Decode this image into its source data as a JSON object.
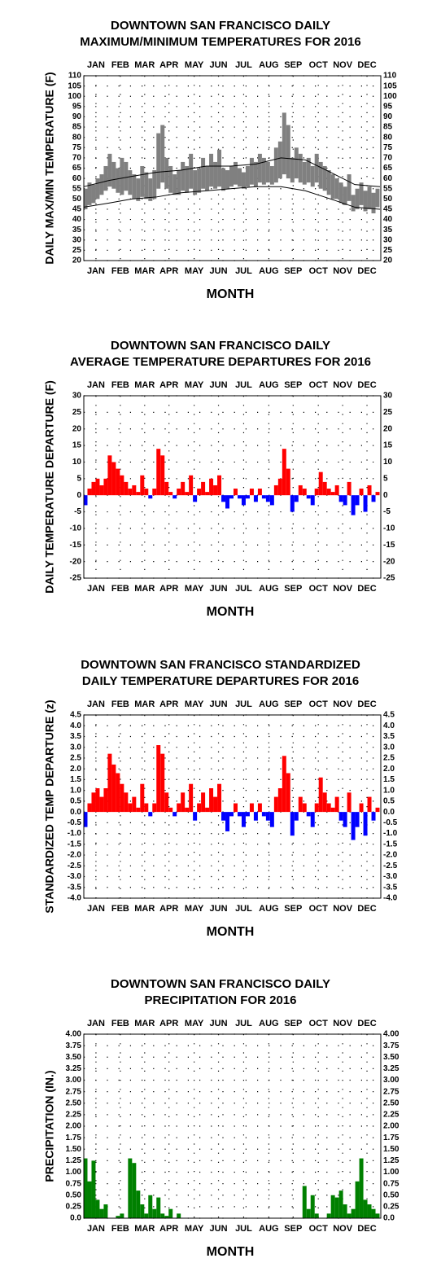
{
  "chart_data": [
    {
      "type": "range",
      "title": [
        "DOWNTOWN SAN FRANCISCO DAILY",
        "MAXIMUM/MINIMUM TEMPERATURES FOR 2016"
      ],
      "ylabel": "DAILY MAX/MIN TEMPERATURE (F)",
      "xlabel": "MONTH",
      "xlim": [
        1,
        367
      ],
      "xticks": [
        {
          "value": 16,
          "label": "JAN"
        },
        {
          "value": 46,
          "label": "FEB"
        },
        {
          "value": 76,
          "label": "MAR"
        },
        {
          "value": 106,
          "label": "APR"
        },
        {
          "value": 137,
          "label": "MAY"
        },
        {
          "value": 167,
          "label": "JUN"
        },
        {
          "value": 198,
          "label": "JUL"
        },
        {
          "value": 229,
          "label": "AUG"
        },
        {
          "value": 259,
          "label": "SEP"
        },
        {
          "value": 290,
          "label": "OCT"
        },
        {
          "value": 320,
          "label": "NOV"
        },
        {
          "value": 350,
          "label": "DEC"
        }
      ],
      "ylim": [
        20,
        110
      ],
      "yticks": [
        110,
        105,
        100,
        95,
        90,
        85,
        80,
        75,
        70,
        65,
        60,
        55,
        50,
        45,
        40,
        35,
        30,
        25,
        20
      ],
      "color": "#808080",
      "x": [
        3,
        8,
        13,
        18,
        23,
        28,
        33,
        38,
        43,
        48,
        53,
        58,
        63,
        68,
        73,
        78,
        83,
        88,
        93,
        98,
        103,
        108,
        113,
        118,
        123,
        128,
        133,
        138,
        143,
        148,
        153,
        158,
        163,
        168,
        173,
        178,
        183,
        188,
        193,
        198,
        203,
        208,
        213,
        218,
        223,
        228,
        233,
        238,
        243,
        248,
        253,
        258,
        263,
        268,
        273,
        278,
        283,
        288,
        293,
        298,
        303,
        308,
        313,
        318,
        323,
        328,
        333,
        338,
        343,
        348,
        353,
        358,
        363
      ],
      "high": [
        55,
        58,
        57,
        60,
        62,
        66,
        72,
        68,
        65,
        70,
        68,
        64,
        62,
        60,
        66,
        63,
        60,
        64,
        82,
        86,
        70,
        66,
        62,
        64,
        68,
        66,
        72,
        64,
        65,
        70,
        66,
        72,
        68,
        74,
        65,
        64,
        66,
        68,
        65,
        63,
        66,
        70,
        68,
        72,
        70,
        68,
        66,
        75,
        78,
        92,
        86,
        70,
        75,
        72,
        68,
        70,
        66,
        72,
        68,
        66,
        64,
        62,
        60,
        58,
        56,
        62,
        52,
        55,
        58,
        54,
        56,
        53,
        55
      ],
      "low": [
        45,
        47,
        48,
        50,
        52,
        54,
        56,
        55,
        53,
        52,
        54,
        52,
        50,
        49,
        51,
        50,
        49,
        50,
        55,
        58,
        55,
        53,
        52,
        52,
        54,
        53,
        55,
        52,
        53,
        55,
        54,
        56,
        55,
        56,
        54,
        55,
        56,
        57,
        56,
        55,
        56,
        57,
        56,
        58,
        57,
        58,
        57,
        58,
        60,
        62,
        60,
        58,
        60,
        58,
        57,
        58,
        56,
        58,
        55,
        54,
        52,
        50,
        50,
        48,
        47,
        49,
        44,
        45,
        47,
        44,
        45,
        43,
        46
      ],
      "series": [
        {
          "color": "#000000",
          "x": [
            1,
            32,
            60,
            91,
            121,
            152,
            182,
            213,
            244,
            274,
            305,
            335,
            366
          ],
          "values": [
            56,
            59,
            61,
            63,
            64,
            66,
            66,
            67,
            70,
            69,
            63,
            57,
            56
          ]
        },
        {
          "color": "#000000",
          "x": [
            1,
            32,
            60,
            91,
            121,
            152,
            182,
            213,
            244,
            274,
            305,
            335,
            366
          ],
          "values": [
            46,
            48,
            50,
            51,
            53,
            54,
            55,
            56,
            56,
            54,
            50,
            46,
            45
          ]
        }
      ]
    },
    {
      "type": "bar",
      "title": [
        "DOWNTOWN SAN FRANCISCO DAILY",
        "AVERAGE TEMPERATURE DEPARTURES FOR 2016"
      ],
      "ylabel": "DAILY TEMPERATURE DEPARTURE (F)",
      "xlabel": "MONTH",
      "xlim": [
        1,
        367
      ],
      "xticks": [
        {
          "value": 16,
          "label": "JAN"
        },
        {
          "value": 46,
          "label": "FEB"
        },
        {
          "value": 76,
          "label": "MAR"
        },
        {
          "value": 106,
          "label": "APR"
        },
        {
          "value": 137,
          "label": "MAY"
        },
        {
          "value": 167,
          "label": "JUN"
        },
        {
          "value": 198,
          "label": "JUL"
        },
        {
          "value": 229,
          "label": "AUG"
        },
        {
          "value": 259,
          "label": "SEP"
        },
        {
          "value": 290,
          "label": "OCT"
        },
        {
          "value": 320,
          "label": "NOV"
        },
        {
          "value": 350,
          "label": "DEC"
        }
      ],
      "ylim": [
        -25,
        30
      ],
      "yticks": [
        30,
        25,
        20,
        15,
        10,
        5,
        0,
        -5,
        -10,
        -15,
        -20,
        -25
      ],
      "pos_color": "#ff0000",
      "neg_color": "#0000ff",
      "x": [
        3,
        8,
        13,
        18,
        23,
        28,
        33,
        38,
        43,
        48,
        53,
        58,
        63,
        68,
        73,
        78,
        83,
        88,
        93,
        98,
        103,
        108,
        113,
        118,
        123,
        128,
        133,
        138,
        143,
        148,
        153,
        158,
        163,
        168,
        173,
        178,
        183,
        188,
        193,
        198,
        203,
        208,
        213,
        218,
        223,
        228,
        233,
        238,
        243,
        248,
        253,
        258,
        263,
        268,
        273,
        278,
        283,
        288,
        293,
        298,
        303,
        308,
        313,
        318,
        323,
        328,
        333,
        338,
        343,
        348,
        353,
        358,
        363
      ],
      "values": [
        -3,
        2,
        4,
        5,
        3,
        5,
        12,
        10,
        8,
        6,
        4,
        2,
        3,
        1,
        6,
        2,
        -1,
        2,
        14,
        12,
        4,
        1,
        -1,
        2,
        4,
        1,
        6,
        -2,
        2,
        4,
        1,
        5,
        3,
        6,
        -2,
        -4,
        -1,
        2,
        -1,
        -3,
        -1,
        2,
        -2,
        2,
        -1,
        -2,
        -3,
        3,
        5,
        14,
        8,
        -5,
        -2,
        3,
        2,
        -1,
        -3,
        2,
        7,
        4,
        2,
        1,
        3,
        -2,
        -3,
        4,
        -6,
        -3,
        2,
        -5,
        3,
        -2,
        1
      ]
    },
    {
      "type": "bar",
      "title": [
        "DOWNTOWN SAN FRANCISCO STANDARDIZED",
        "DAILY TEMPERATURE DEPARTURES FOR 2016"
      ],
      "ylabel": "STANDARDIZED TEMP DEPARTURE (z)",
      "xlabel": "MONTH",
      "xlim": [
        1,
        367
      ],
      "xticks": [
        {
          "value": 16,
          "label": "JAN"
        },
        {
          "value": 46,
          "label": "FEB"
        },
        {
          "value": 76,
          "label": "MAR"
        },
        {
          "value": 106,
          "label": "APR"
        },
        {
          "value": 137,
          "label": "MAY"
        },
        {
          "value": 167,
          "label": "JUN"
        },
        {
          "value": 198,
          "label": "JUL"
        },
        {
          "value": 229,
          "label": "AUG"
        },
        {
          "value": 259,
          "label": "SEP"
        },
        {
          "value": 290,
          "label": "OCT"
        },
        {
          "value": 320,
          "label": "NOV"
        },
        {
          "value": 350,
          "label": "DEC"
        }
      ],
      "ylim": [
        -4,
        4.5
      ],
      "yticks": [
        4.5,
        {
          "value": 4,
          "label": "4.0"
        },
        3.5,
        {
          "value": 3,
          "label": "3.0"
        },
        2.5,
        {
          "value": 2,
          "label": "2.0"
        },
        1.5,
        {
          "value": 1,
          "label": "1.0"
        },
        0.5,
        {
          "value": 0,
          "label": "0.0"
        },
        -0.5,
        {
          "value": -1,
          "label": "-1.0"
        },
        -1.5,
        {
          "value": -2,
          "label": "-2.0"
        },
        -2.5,
        {
          "value": -3,
          "label": "-3.0"
        },
        -3.5,
        {
          "value": -4,
          "label": "-4.0"
        }
      ],
      "pos_color": "#ff0000",
      "neg_color": "#0000ff",
      "x": [
        3,
        8,
        13,
        18,
        23,
        28,
        33,
        38,
        43,
        48,
        53,
        58,
        63,
        68,
        73,
        78,
        83,
        88,
        93,
        98,
        103,
        108,
        113,
        118,
        123,
        128,
        133,
        138,
        143,
        148,
        153,
        158,
        163,
        168,
        173,
        178,
        183,
        188,
        193,
        198,
        203,
        208,
        213,
        218,
        223,
        228,
        233,
        238,
        243,
        248,
        253,
        258,
        263,
        268,
        273,
        278,
        283,
        288,
        293,
        298,
        303,
        308,
        313,
        318,
        323,
        328,
        333,
        338,
        343,
        348,
        353,
        358,
        363
      ],
      "values": [
        -0.7,
        0.4,
        0.9,
        1.1,
        0.7,
        1.1,
        2.7,
        2.2,
        1.8,
        1.3,
        0.9,
        0.4,
        0.7,
        0.2,
        1.3,
        0.4,
        -0.2,
        0.4,
        3.1,
        2.7,
        0.9,
        0.2,
        -0.2,
        0.4,
        0.9,
        0.2,
        1.3,
        -0.4,
        0.4,
        0.9,
        0.2,
        1.1,
        0.7,
        1.3,
        -0.4,
        -0.9,
        -0.2,
        0.4,
        -0.2,
        -0.7,
        -0.2,
        0.4,
        -0.4,
        0.4,
        -0.2,
        -0.4,
        -0.7,
        0.7,
        1.1,
        2.6,
        1.8,
        -1.1,
        -0.4,
        0.7,
        0.4,
        -0.2,
        -0.7,
        0.4,
        1.6,
        0.9,
        0.4,
        0.2,
        0.7,
        -0.4,
        -0.7,
        0.9,
        -1.3,
        -0.7,
        0.4,
        -1.1,
        0.7,
        -0.4,
        0.2
      ]
    },
    {
      "type": "bar",
      "title": [
        "DOWNTOWN SAN FRANCISCO DAILY",
        "PRECIPITATION FOR 2016"
      ],
      "ylabel": "PRECIPITATION (IN.)",
      "xlabel": "MONTH",
      "xlim": [
        1,
        367
      ],
      "xticks": [
        {
          "value": 16,
          "label": "JAN"
        },
        {
          "value": 46,
          "label": "FEB"
        },
        {
          "value": 76,
          "label": "MAR"
        },
        {
          "value": 106,
          "label": "APR"
        },
        {
          "value": 137,
          "label": "MAY"
        },
        {
          "value": 167,
          "label": "JUN"
        },
        {
          "value": 198,
          "label": "JUL"
        },
        {
          "value": 229,
          "label": "AUG"
        },
        {
          "value": 259,
          "label": "SEP"
        },
        {
          "value": 290,
          "label": "OCT"
        },
        {
          "value": 320,
          "label": "NOV"
        },
        {
          "value": 350,
          "label": "DEC"
        }
      ],
      "ylim": [
        0,
        4
      ],
      "yticks": [
        {
          "value": 4,
          "label": "4.00"
        },
        3.75,
        {
          "value": 3.5,
          "label": "3.50"
        },
        3.25,
        {
          "value": 3,
          "label": "3.00"
        },
        2.75,
        {
          "value": 2.5,
          "label": "2.50"
        },
        2.25,
        {
          "value": 2,
          "label": "2.00"
        },
        1.75,
        {
          "value": 1.5,
          "label": "1.50"
        },
        1.25,
        {
          "value": 1,
          "label": "1.00"
        },
        0.75,
        {
          "value": 0.5,
          "label": "0.50"
        },
        0.25,
        {
          "value": 0,
          "label": "0.0"
        }
      ],
      "color": "#008000",
      "x": [
        3,
        8,
        13,
        18,
        23,
        28,
        33,
        38,
        43,
        48,
        53,
        58,
        63,
        68,
        73,
        78,
        83,
        88,
        93,
        98,
        103,
        108,
        113,
        118,
        123,
        128,
        133,
        138,
        143,
        148,
        153,
        158,
        163,
        168,
        173,
        178,
        183,
        188,
        193,
        198,
        203,
        208,
        213,
        218,
        223,
        228,
        233,
        238,
        243,
        248,
        253,
        258,
        263,
        268,
        273,
        278,
        283,
        288,
        293,
        298,
        303,
        308,
        313,
        318,
        323,
        328,
        333,
        338,
        343,
        348,
        353,
        358,
        363
      ],
      "values": [
        1.3,
        0.8,
        1.25,
        0.4,
        0.2,
        0.3,
        0,
        0,
        0.05,
        0.1,
        0,
        1.3,
        1.2,
        0.6,
        0.3,
        0.1,
        0.5,
        0.2,
        0.45,
        0.1,
        0.05,
        0.2,
        0,
        0.1,
        0,
        0,
        0,
        0,
        0,
        0,
        0,
        0,
        0,
        0,
        0,
        0,
        0,
        0,
        0,
        0,
        0,
        0,
        0,
        0,
        0,
        0,
        0,
        0,
        0,
        0,
        0,
        0,
        0,
        0,
        0.7,
        0.2,
        0.5,
        0.1,
        0,
        0,
        0.1,
        0.5,
        0.45,
        0.6,
        0.3,
        0.1,
        0.2,
        0.8,
        1.3,
        0.4,
        0.3,
        0.2,
        0.1
      ]
    }
  ]
}
